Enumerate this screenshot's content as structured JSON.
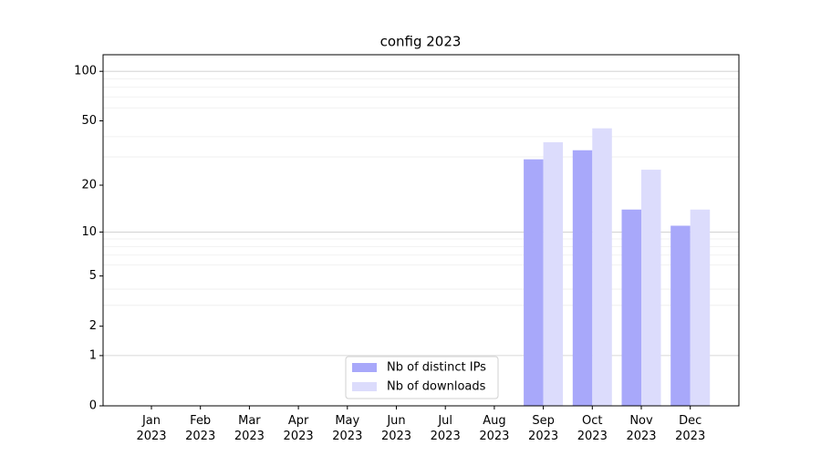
{
  "chart_data": {
    "type": "bar",
    "title": "config 2023",
    "categories": [
      "Jan 2023",
      "Feb 2023",
      "Mar 2023",
      "Apr 2023",
      "May 2023",
      "Jun 2023",
      "Jul 2023",
      "Aug 2023",
      "Sep 2023",
      "Oct 2023",
      "Nov 2023",
      "Dec 2023"
    ],
    "series": [
      {
        "name": "Nb of distinct IPs",
        "color": "#a8a8fa",
        "values": [
          0,
          0,
          0,
          0,
          0,
          0,
          0,
          0,
          29,
          33,
          14,
          11
        ]
      },
      {
        "name": "Nb of downloads",
        "color": "#dcdcfc",
        "values": [
          0,
          0,
          0,
          0,
          0,
          0,
          0,
          0,
          37,
          45,
          25,
          14
        ]
      }
    ],
    "yscale": "log1p",
    "ylim": [
      0,
      126
    ],
    "yticks": [
      0,
      1,
      2,
      5,
      10,
      20,
      50,
      100
    ],
    "major_grid_yticks": [
      1,
      10,
      100
    ],
    "minor_yticks": [
      3,
      4,
      6,
      7,
      8,
      9,
      30,
      40,
      60,
      70,
      80,
      90
    ],
    "grid": true,
    "legend": "lower center"
  }
}
